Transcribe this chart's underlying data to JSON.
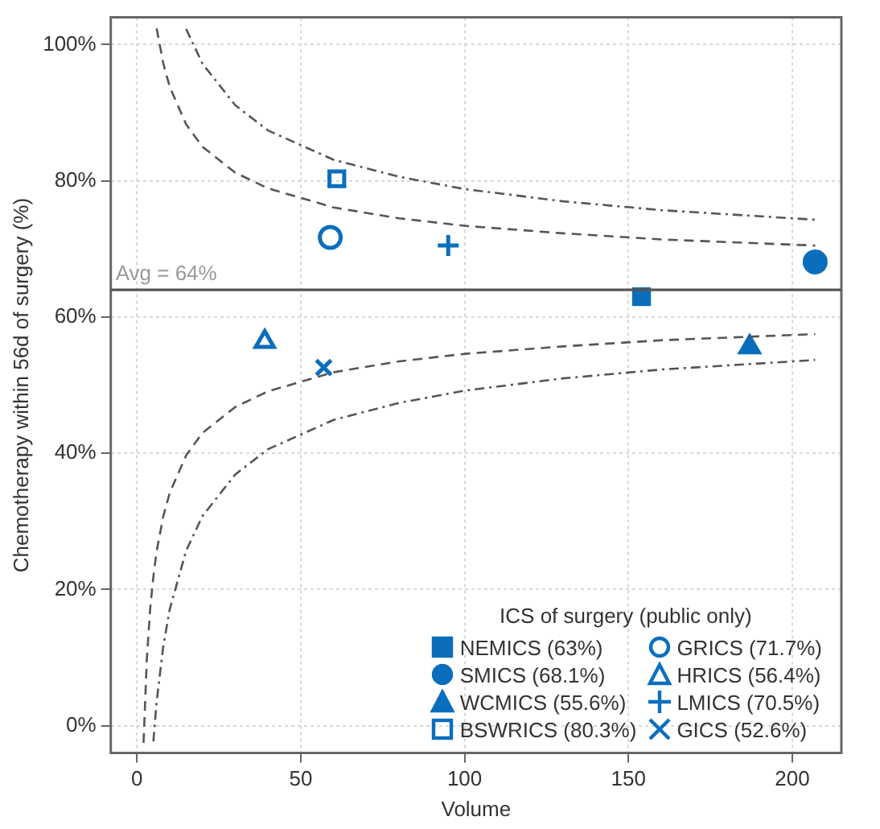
{
  "chart_data": {
    "type": "scatter",
    "xlabel": "Volume",
    "ylabel": "Chemotherapy within 56d of surgery (%)",
    "legend_title": "ICS of surgery (public only)",
    "legend": "bottom right",
    "grid": true,
    "xlim": [
      -8,
      215
    ],
    "xticks": [
      0,
      50,
      100,
      150,
      200
    ],
    "ylim": [
      -4,
      104
    ],
    "yticks": [
      {
        "value": 0,
        "label": "0%"
      },
      {
        "value": 20,
        "label": "20%"
      },
      {
        "value": 40,
        "label": "40%"
      },
      {
        "value": 60,
        "label": "60%"
      },
      {
        "value": 80,
        "label": "80%"
      },
      {
        "value": 100,
        "label": "100%"
      }
    ],
    "ref_lines": [
      {
        "axis": "y",
        "value": 64,
        "label": "Avg = 64%",
        "color": "#555555",
        "line_style": "solid"
      }
    ],
    "series": [
      {
        "type": "line",
        "color": "#555555",
        "line_style": "dashed",
        "marker": "none",
        "x": [
          6,
          8,
          10,
          15,
          20,
          30,
          40,
          60,
          80,
          100,
          130,
          160,
          207
        ],
        "values": [
          102.4,
          97.3,
          93.8,
          88.3,
          85.0,
          81.2,
          78.9,
          76.1,
          74.5,
          73.4,
          72.3,
          71.4,
          70.5
        ]
      },
      {
        "type": "line",
        "color": "#555555",
        "line_style": "dashed",
        "marker": "none",
        "x": [
          2,
          3,
          4,
          5,
          6,
          8,
          10,
          15,
          20,
          30,
          40,
          60,
          80,
          100,
          130,
          160,
          207
        ],
        "values": [
          -2.5,
          9.7,
          17.0,
          21.9,
          25.6,
          30.7,
          34.2,
          39.7,
          43.0,
          46.8,
          49.1,
          51.9,
          53.5,
          54.6,
          55.7,
          56.6,
          57.5
        ]
      },
      {
        "type": "line",
        "color": "#555555",
        "line_style": "dotted",
        "marker": "none",
        "x": [
          15,
          20,
          30,
          40,
          60,
          80,
          100,
          130,
          160,
          207
        ],
        "values": [
          102.3,
          97.2,
          91.1,
          87.4,
          83.1,
          80.6,
          78.8,
          77.0,
          75.7,
          74.3
        ]
      },
      {
        "type": "line",
        "color": "#555555",
        "line_style": "dotted",
        "marker": "none",
        "x": [
          5,
          6,
          8,
          10,
          15,
          20,
          30,
          40,
          60,
          80,
          100,
          130,
          160,
          207
        ],
        "values": [
          -2.3,
          3.5,
          11.6,
          17.1,
          25.7,
          30.8,
          36.9,
          40.6,
          44.9,
          47.4,
          49.2,
          51.0,
          52.3,
          53.7
        ]
      },
      {
        "name": "NEMICS (63%)",
        "color": "#0a6ebd",
        "marker": "square",
        "x": [
          154
        ],
        "values": [
          63
        ]
      },
      {
        "name": "SMICS (68.1%)",
        "color": "#0a6ebd",
        "marker": "circle",
        "x": [
          207
        ],
        "values": [
          68.1
        ]
      },
      {
        "name": "WCMICS (55.6%)",
        "color": "#0a6ebd",
        "marker": "triangle",
        "x": [
          187
        ],
        "values": [
          55.6
        ]
      },
      {
        "name": "BSWRICS (80.3%)",
        "color": "#0a6ebd",
        "marker": "square-open",
        "x": [
          61
        ],
        "values": [
          80.3
        ]
      },
      {
        "name": "GRICS (71.7%)",
        "color": "#0a6ebd",
        "marker": "circle-open",
        "x": [
          59
        ],
        "values": [
          71.7
        ]
      },
      {
        "name": "HRICS (56.4%)",
        "color": "#0a6ebd",
        "marker": "triangle-open",
        "x": [
          39
        ],
        "values": [
          56.4
        ]
      },
      {
        "name": "LMICS (70.5%)",
        "color": "#0a6ebd",
        "marker": "cross",
        "x": [
          95
        ],
        "values": [
          70.5
        ]
      },
      {
        "name": "GICS (52.6%)",
        "color": "#0a6ebd",
        "marker": "x",
        "x": [
          57
        ],
        "values": [
          52.6
        ]
      }
    ]
  }
}
